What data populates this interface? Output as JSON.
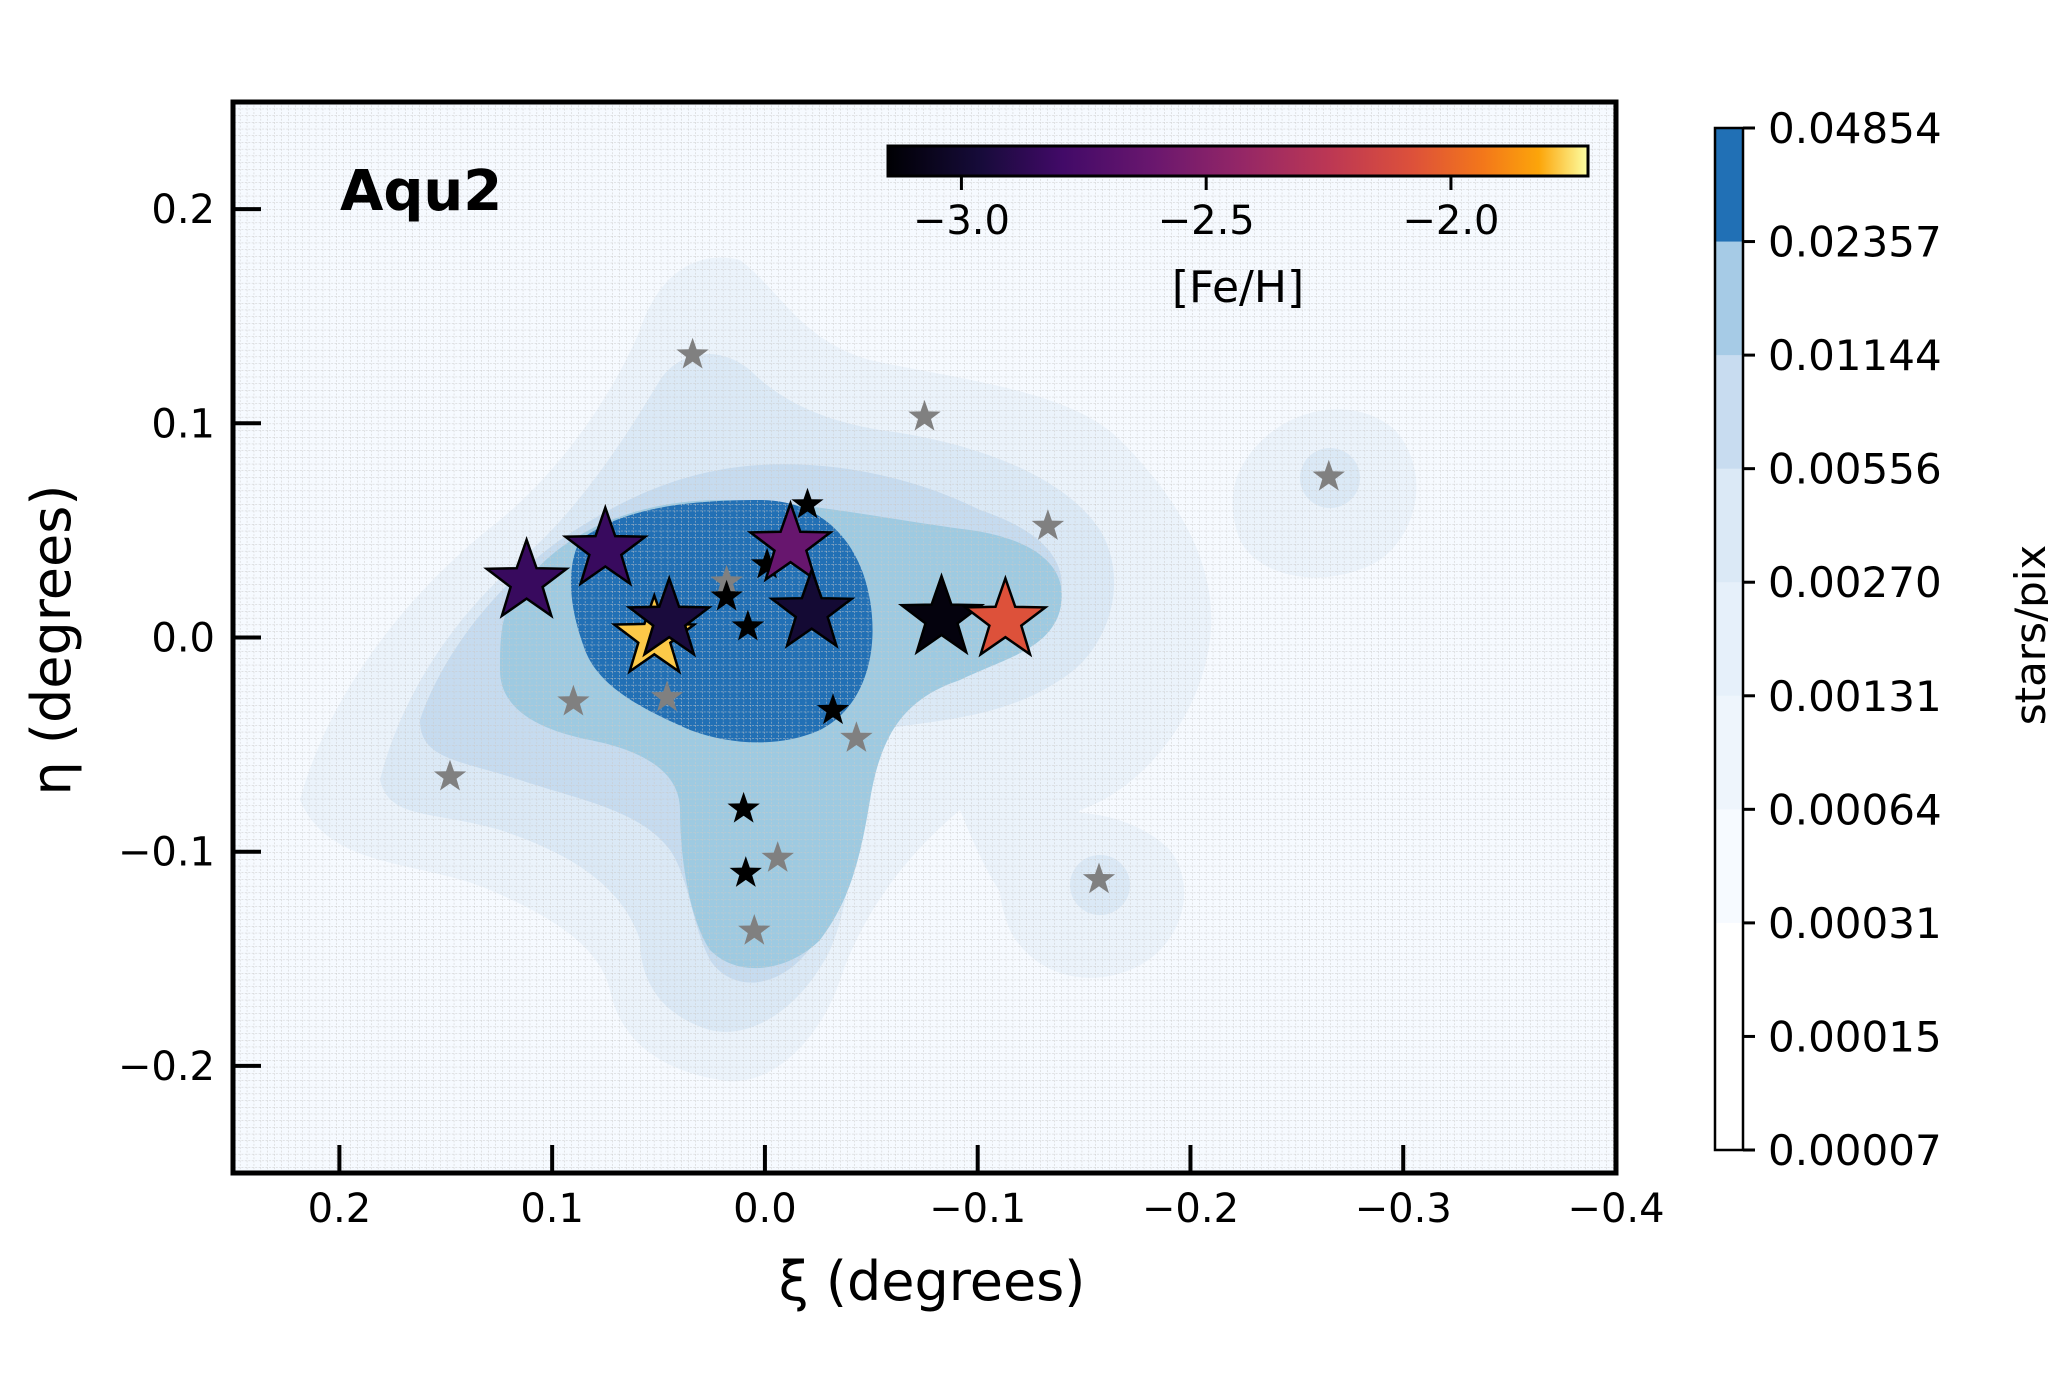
{
  "chart_data": {
    "type": "scatter",
    "title": "Aqu2",
    "xlabel": "ξ (degrees)",
    "ylabel": "η (degrees)",
    "xlim": [
      0.25,
      -0.4
    ],
    "ylim": [
      -0.25,
      0.25
    ],
    "x_ticks": [
      0.2,
      0.1,
      0.0,
      -0.1,
      -0.2,
      -0.3,
      -0.4
    ],
    "x_tick_labels": [
      "0.2",
      "0.1",
      "0.0",
      "−0.1",
      "−0.2",
      "−0.3",
      "−0.4"
    ],
    "y_ticks": [
      0.2,
      0.1,
      0.0,
      -0.1,
      -0.2
    ],
    "y_tick_labels": [
      "0.2",
      "0.1",
      "0.0",
      "−0.1",
      "−0.2"
    ],
    "grid": true,
    "density_colorbar": {
      "label": "stars/pix",
      "levels": [
        "0.04854",
        "0.02357",
        "0.01144",
        "0.00556",
        "0.00270",
        "0.00131",
        "0.00064",
        "0.00031",
        "0.00015",
        "0.00007"
      ],
      "colors": [
        "#ffffff",
        "#f6faff",
        "#eef5fc",
        "#e6f0fa",
        "#dbe9f6",
        "#c8dcf0",
        "#a6cbe6",
        "#2170b5"
      ]
    },
    "feh_colorbar": {
      "label": "[Fe/H]",
      "range": [
        -3.15,
        -1.72
      ],
      "ticks": [
        -3.0,
        -2.5,
        -2.0
      ],
      "tick_labels": [
        "−3.0",
        "−2.5",
        "−2.0"
      ]
    },
    "series": [
      {
        "name": "members_with_feh",
        "points": [
          {
            "xi": 0.112,
            "eta": 0.026,
            "feh": -2.83
          },
          {
            "xi": 0.075,
            "eta": 0.041,
            "feh": -2.83
          },
          {
            "xi": 0.052,
            "eta": 0.0,
            "feh": -1.78
          },
          {
            "xi": 0.045,
            "eta": 0.008,
            "feh": -2.95
          },
          {
            "xi": -0.012,
            "eta": 0.043,
            "feh": -2.62
          },
          {
            "xi": -0.022,
            "eta": 0.012,
            "feh": -2.98
          },
          {
            "xi": -0.083,
            "eta": 0.009,
            "feh": -3.12
          },
          {
            "xi": -0.113,
            "eta": 0.008,
            "feh": -2.08
          }
        ]
      },
      {
        "name": "members",
        "color": "#000000",
        "points": [
          {
            "xi": -0.02,
            "eta": 0.062
          },
          {
            "xi": -0.001,
            "eta": 0.034
          },
          {
            "xi": 0.018,
            "eta": 0.019
          },
          {
            "xi": 0.008,
            "eta": 0.005
          },
          {
            "xi": -0.02,
            "eta": 0.012
          },
          {
            "xi": -0.032,
            "eta": -0.034
          },
          {
            "xi": 0.01,
            "eta": -0.08
          },
          {
            "xi": 0.009,
            "eta": -0.11
          }
        ]
      },
      {
        "name": "non_members",
        "color": "#808080",
        "points": [
          {
            "xi": 0.034,
            "eta": 0.132
          },
          {
            "xi": -0.075,
            "eta": 0.103
          },
          {
            "xi": -0.133,
            "eta": 0.052
          },
          {
            "xi": -0.265,
            "eta": 0.075
          },
          {
            "xi": 0.018,
            "eta": 0.026
          },
          {
            "xi": 0.09,
            "eta": -0.03
          },
          {
            "xi": 0.046,
            "eta": -0.028
          },
          {
            "xi": -0.043,
            "eta": -0.047
          },
          {
            "xi": 0.148,
            "eta": -0.065
          },
          {
            "xi": -0.006,
            "eta": -0.103
          },
          {
            "xi": 0.005,
            "eta": -0.137
          },
          {
            "xi": -0.157,
            "eta": -0.113
          }
        ]
      }
    ]
  }
}
